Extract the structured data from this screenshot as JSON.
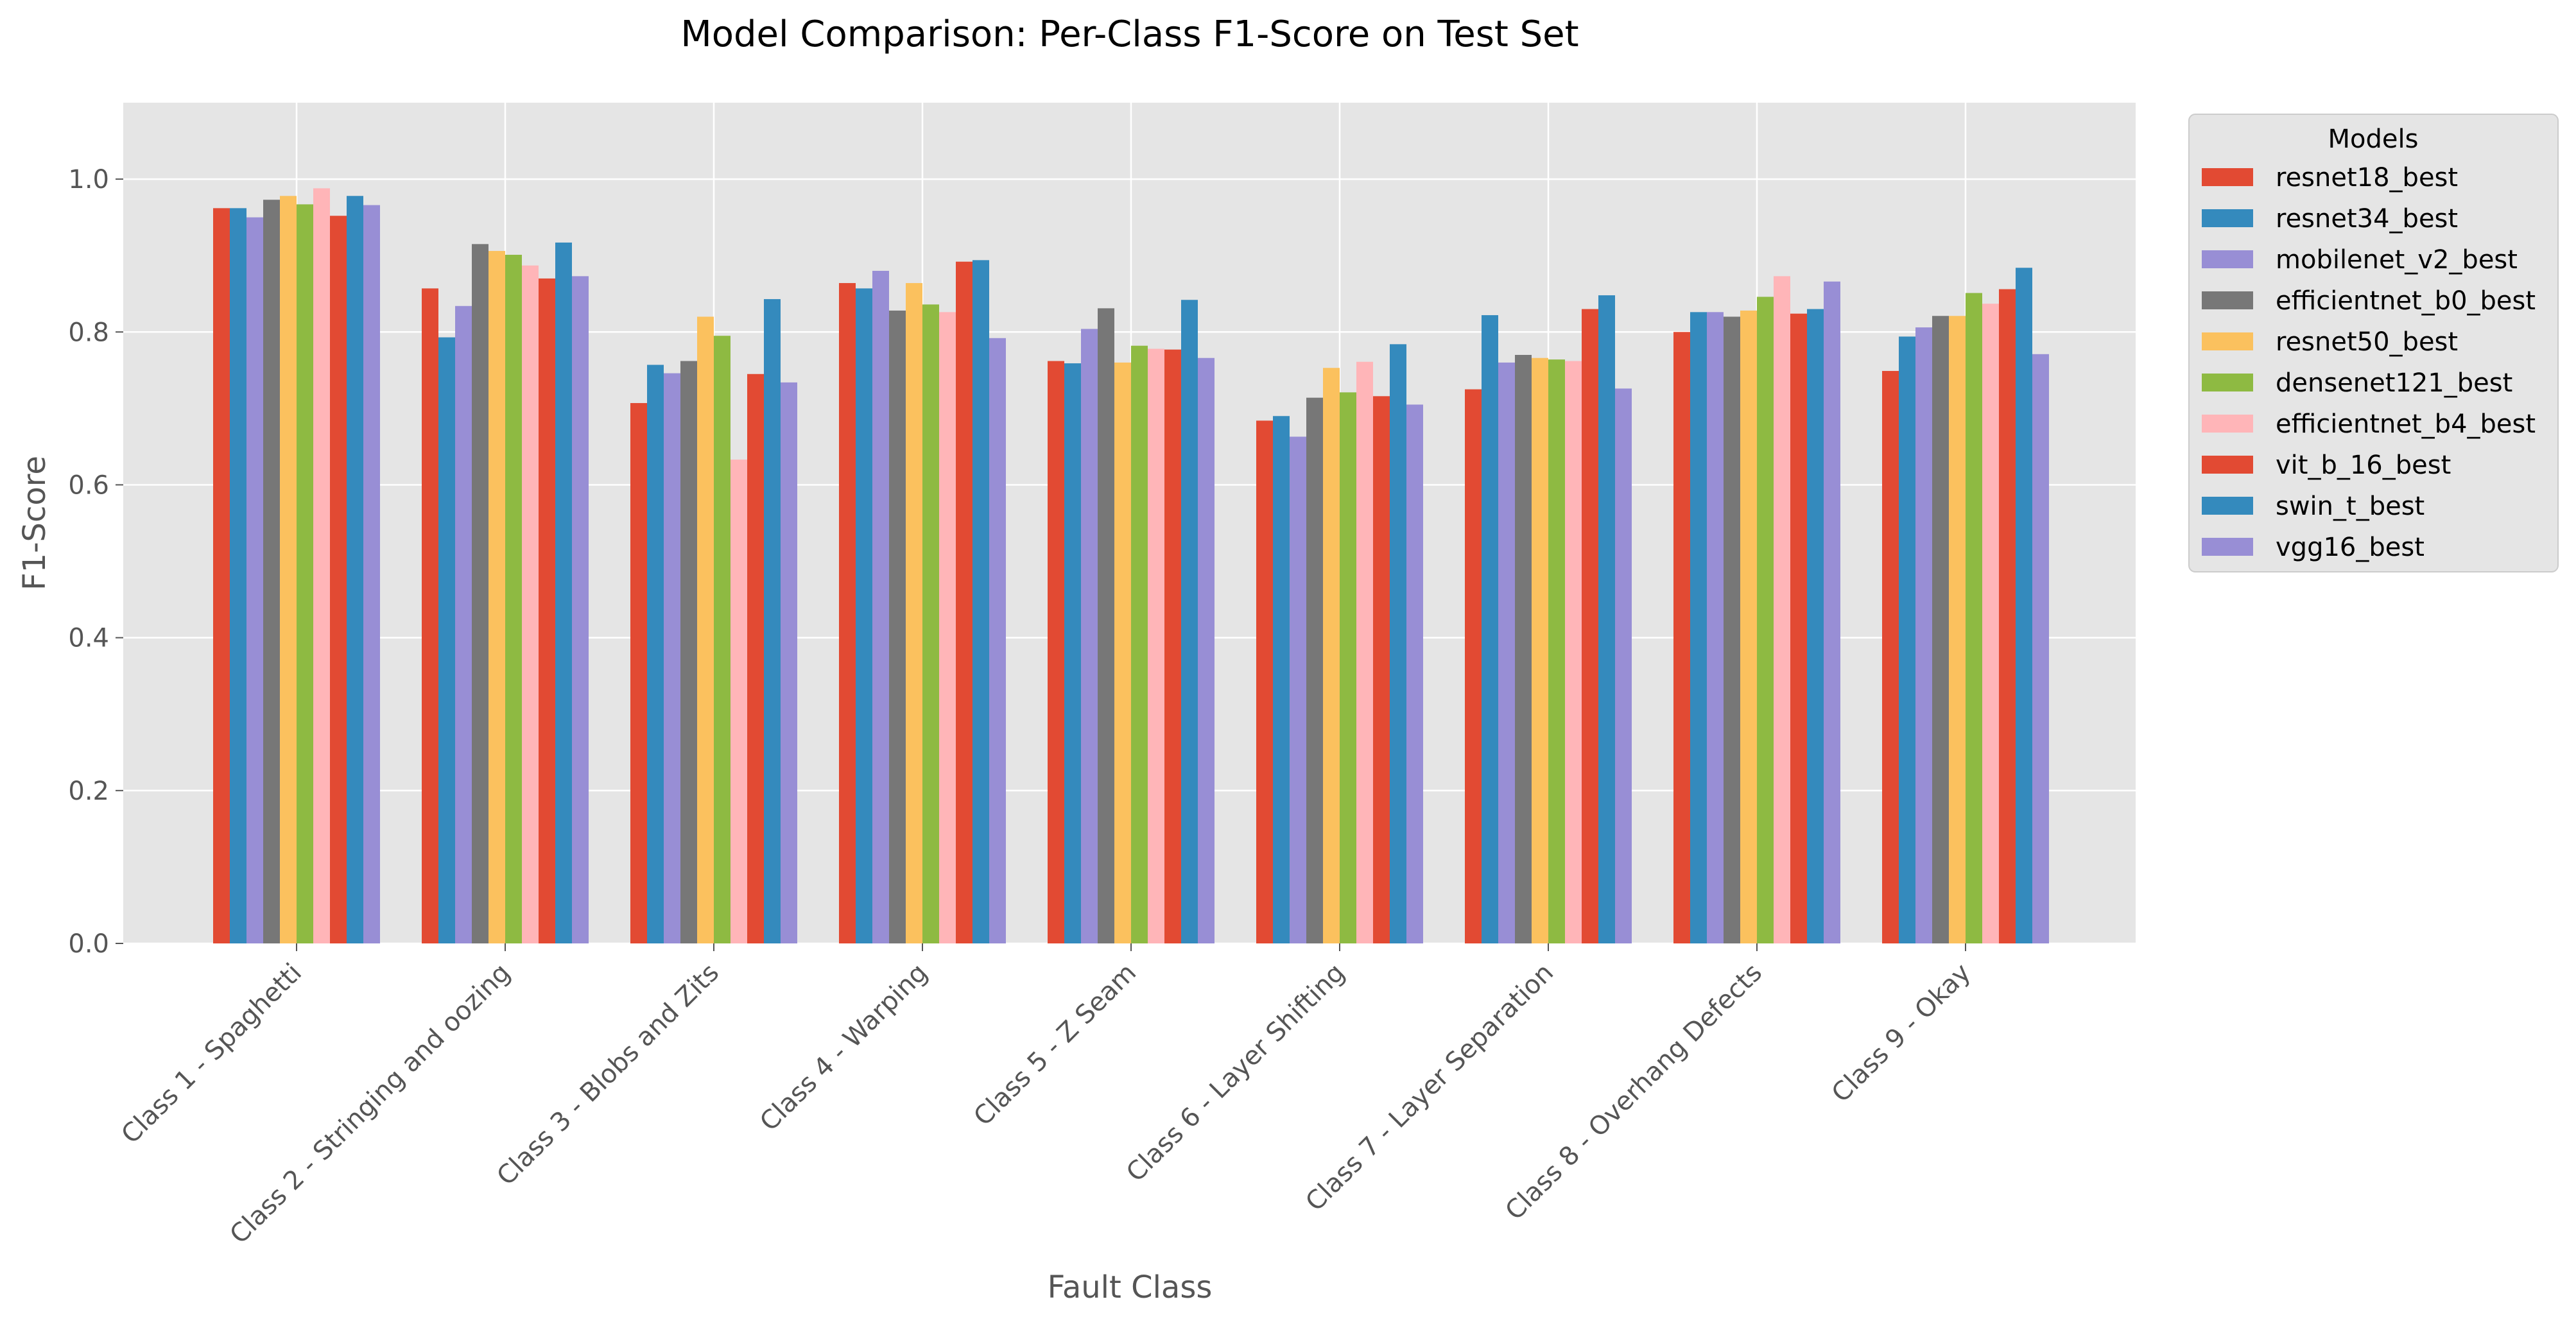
{
  "chart_data": {
    "type": "bar",
    "title": "Model Comparison: Per-Class F1-Score on Test Set",
    "xlabel": "Fault Class",
    "ylabel": "F1-Score",
    "ylim": [
      0,
      1.1
    ],
    "yticks": [
      "0.0",
      "0.2",
      "0.4",
      "0.6",
      "0.8",
      "1.0"
    ],
    "grid": true,
    "legend_title": "Models",
    "legend_position": "outside-right",
    "categories": [
      "Class 1 - Spaghetti",
      "Class 2 - Stringing and oozing",
      "Class 3 - Blobs and Zits",
      "Class 4 - Warping",
      "Class 5 - Z Seam",
      "Class 6 - Layer Shifting",
      "Class 7 - Layer Separation",
      "Class 8 - Overhang Defects",
      "Class 9 - Okay"
    ],
    "series": [
      {
        "name": "resnet18_best",
        "color": "#E24A33",
        "values": [
          0.962,
          0.857,
          0.707,
          0.864,
          0.762,
          0.684,
          0.725,
          0.8,
          0.749
        ]
      },
      {
        "name": "resnet34_best",
        "color": "#348ABD",
        "values": [
          0.962,
          0.793,
          0.757,
          0.857,
          0.759,
          0.69,
          0.822,
          0.826,
          0.794
        ]
      },
      {
        "name": "mobilenet_v2_best",
        "color": "#988ED5",
        "values": [
          0.95,
          0.834,
          0.746,
          0.88,
          0.804,
          0.663,
          0.76,
          0.826,
          0.806
        ]
      },
      {
        "name": "efficientnet_b0_best",
        "color": "#777777",
        "values": [
          0.973,
          0.915,
          0.762,
          0.828,
          0.831,
          0.714,
          0.77,
          0.82,
          0.821
        ]
      },
      {
        "name": "resnet50_best",
        "color": "#FBC15E",
        "values": [
          0.978,
          0.906,
          0.82,
          0.864,
          0.76,
          0.753,
          0.766,
          0.828,
          0.821
        ]
      },
      {
        "name": "densenet121_best",
        "color": "#8EBA42",
        "values": [
          0.967,
          0.901,
          0.795,
          0.836,
          0.782,
          0.721,
          0.764,
          0.846,
          0.851
        ]
      },
      {
        "name": "efficientnet_b4_best",
        "color": "#FFB5B8",
        "values": [
          0.988,
          0.887,
          0.633,
          0.826,
          0.778,
          0.761,
          0.762,
          0.873,
          0.837
        ]
      },
      {
        "name": "vit_b_16_best",
        "color": "#E24A33",
        "values": [
          0.952,
          0.87,
          0.745,
          0.892,
          0.777,
          0.716,
          0.83,
          0.824,
          0.856
        ]
      },
      {
        "name": "swin_t_best",
        "color": "#348ABD",
        "values": [
          0.978,
          0.917,
          0.843,
          0.894,
          0.842,
          0.784,
          0.848,
          0.83,
          0.884
        ]
      },
      {
        "name": "vgg16_best",
        "color": "#988ED5",
        "values": [
          0.966,
          0.873,
          0.734,
          0.792,
          0.766,
          0.705,
          0.726,
          0.866,
          0.771
        ]
      }
    ]
  }
}
